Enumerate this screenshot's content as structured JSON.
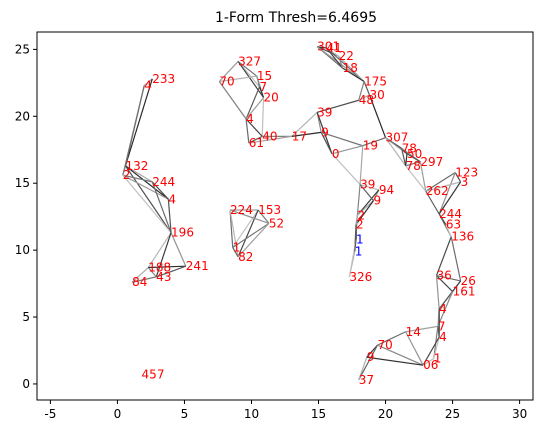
{
  "chart_data": {
    "type": "scatter",
    "title": "1-Form Thresh=6.4695",
    "xlabel": "",
    "ylabel": "",
    "xlim": [
      -6,
      31
    ],
    "ylim": [
      -1.2,
      26.3
    ],
    "xticks": [
      -5,
      0,
      5,
      10,
      15,
      20,
      25,
      30
    ],
    "yticks": [
      0,
      5,
      10,
      15,
      20,
      25
    ],
    "grid": false,
    "colors": {
      "label": "#ff0000",
      "highlight": "#0000ff",
      "edge": "#222222"
    },
    "labels": [
      {
        "text": "301",
        "x": 14.9,
        "y": 25.2
      },
      {
        "text": "41",
        "x": 15.6,
        "y": 25.1
      },
      {
        "text": "22",
        "x": 16.5,
        "y": 24.5
      },
      {
        "text": "18",
        "x": 16.8,
        "y": 23.6
      },
      {
        "text": "175",
        "x": 18.4,
        "y": 22.6
      },
      {
        "text": "30",
        "x": 18.8,
        "y": 21.6
      },
      {
        "text": "48",
        "x": 18.0,
        "y": 21.2
      },
      {
        "text": "327",
        "x": 9.0,
        "y": 24.1
      },
      {
        "text": "15",
        "x": 10.4,
        "y": 23.0
      },
      {
        "text": "7",
        "x": 10.6,
        "y": 22.2
      },
      {
        "text": "70",
        "x": 7.6,
        "y": 22.6
      },
      {
        "text": "233",
        "x": 2.6,
        "y": 22.8
      },
      {
        "text": "4",
        "x": 2.0,
        "y": 22.3
      },
      {
        "text": "20",
        "x": 10.9,
        "y": 21.4
      },
      {
        "text": "4",
        "x": 9.6,
        "y": 19.8
      },
      {
        "text": "39",
        "x": 14.9,
        "y": 20.3
      },
      {
        "text": "40",
        "x": 10.8,
        "y": 18.5
      },
      {
        "text": "61",
        "x": 9.8,
        "y": 18.0
      },
      {
        "text": "17",
        "x": 13.0,
        "y": 18.5
      },
      {
        "text": "9",
        "x": 15.2,
        "y": 18.8
      },
      {
        "text": "0",
        "x": 16.0,
        "y": 17.2
      },
      {
        "text": "307",
        "x": 20.0,
        "y": 18.4
      },
      {
        "text": "78",
        "x": 21.2,
        "y": 17.6
      },
      {
        "text": "19",
        "x": 18.3,
        "y": 17.8
      },
      {
        "text": "50",
        "x": 21.6,
        "y": 17.2
      },
      {
        "text": "297",
        "x": 22.6,
        "y": 16.6
      },
      {
        "text": "78",
        "x": 21.5,
        "y": 16.3
      },
      {
        "text": "123",
        "x": 25.2,
        "y": 15.8
      },
      {
        "text": "3",
        "x": 25.6,
        "y": 15.1
      },
      {
        "text": "262",
        "x": 23.0,
        "y": 14.4
      },
      {
        "text": "132",
        "x": 0.6,
        "y": 16.3
      },
      {
        "text": "2",
        "x": 0.4,
        "y": 15.6
      },
      {
        "text": "244",
        "x": 2.6,
        "y": 15.1
      },
      {
        "text": "94",
        "x": 19.5,
        "y": 14.5
      },
      {
        "text": "39",
        "x": 18.1,
        "y": 14.9
      },
      {
        "text": "9",
        "x": 19.1,
        "y": 13.7
      },
      {
        "text": "4",
        "x": 3.8,
        "y": 13.8
      },
      {
        "text": "153",
        "x": 10.5,
        "y": 13.0
      },
      {
        "text": "224",
        "x": 8.4,
        "y": 13.0
      },
      {
        "text": "244",
        "x": 24.0,
        "y": 12.7
      },
      {
        "text": "2",
        "x": 17.9,
        "y": 12.6
      },
      {
        "text": "2",
        "x": 17.8,
        "y": 11.9
      },
      {
        "text": "52",
        "x": 11.3,
        "y": 12.0
      },
      {
        "text": "63",
        "x": 24.5,
        "y": 11.9
      },
      {
        "text": "136",
        "x": 24.9,
        "y": 11.0
      },
      {
        "text": "196",
        "x": 4.0,
        "y": 11.3
      },
      {
        "text": "1",
        "x": 8.6,
        "y": 10.2
      },
      {
        "text": "82",
        "x": 9.0,
        "y": 9.5
      },
      {
        "text": "188",
        "x": 2.3,
        "y": 8.7
      },
      {
        "text": "241",
        "x": 5.1,
        "y": 8.8
      },
      {
        "text": "84",
        "x": 1.1,
        "y": 7.6
      },
      {
        "text": "43",
        "x": 2.9,
        "y": 8.0
      },
      {
        "text": "326",
        "x": 17.3,
        "y": 8.0
      },
      {
        "text": "36",
        "x": 23.8,
        "y": 8.1
      },
      {
        "text": "26",
        "x": 25.6,
        "y": 7.7
      },
      {
        "text": "161",
        "x": 25.0,
        "y": 6.9
      },
      {
        "text": "4",
        "x": 24.0,
        "y": 5.6
      },
      {
        "text": "7",
        "x": 23.9,
        "y": 4.3
      },
      {
        "text": "4",
        "x": 24.0,
        "y": 3.5
      },
      {
        "text": "14",
        "x": 21.5,
        "y": 3.9
      },
      {
        "text": "1",
        "x": 23.6,
        "y": 1.9
      },
      {
        "text": "70",
        "x": 19.4,
        "y": 2.9
      },
      {
        "text": "9",
        "x": 18.6,
        "y": 2.0
      },
      {
        "text": "06",
        "x": 22.8,
        "y": 1.4
      },
      {
        "text": "37",
        "x": 18.0,
        "y": 0.3
      },
      {
        "text": "457",
        "x": 1.8,
        "y": 0.7
      }
    ],
    "highlights": [
      {
        "text": "1",
        "x": 17.8,
        "y": 10.8
      },
      {
        "text": "1",
        "x": 17.7,
        "y": 9.9
      }
    ]
  }
}
